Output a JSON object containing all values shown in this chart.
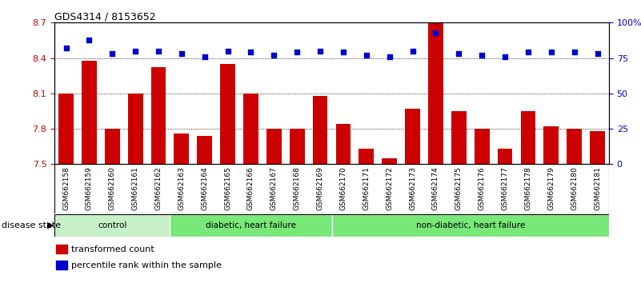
{
  "title": "GDS4314 / 8153652",
  "samples": [
    "GSM662158",
    "GSM662159",
    "GSM662160",
    "GSM662161",
    "GSM662162",
    "GSM662163",
    "GSM662164",
    "GSM662165",
    "GSM662166",
    "GSM662167",
    "GSM662168",
    "GSM662169",
    "GSM662170",
    "GSM662171",
    "GSM662172",
    "GSM662173",
    "GSM662174",
    "GSM662175",
    "GSM662176",
    "GSM662177",
    "GSM662178",
    "GSM662179",
    "GSM662180",
    "GSM662181"
  ],
  "bar_values": [
    8.1,
    8.38,
    7.8,
    8.1,
    8.32,
    7.76,
    7.74,
    8.35,
    8.1,
    7.8,
    7.8,
    8.08,
    7.84,
    7.63,
    7.55,
    7.97,
    8.7,
    7.95,
    7.8,
    7.63,
    7.95,
    7.82,
    7.8,
    7.78
  ],
  "dot_values": [
    82,
    88,
    78,
    80,
    80,
    78,
    76,
    80,
    79,
    77,
    79,
    80,
    79,
    77,
    76,
    80,
    93,
    78,
    77,
    76,
    79,
    79,
    79,
    78
  ],
  "group_ranges": [
    {
      "start": 0,
      "end": 4,
      "color": "#c8f0c8",
      "label": "control"
    },
    {
      "start": 5,
      "end": 11,
      "color": "#78e878",
      "label": "diabetic, heart failure"
    },
    {
      "start": 12,
      "end": 23,
      "color": "#78e878",
      "label": "non-diabetic, heart failure"
    }
  ],
  "ylim_left": [
    7.5,
    8.7
  ],
  "ylim_right": [
    0,
    100
  ],
  "yticks_left": [
    7.5,
    7.8,
    8.1,
    8.4,
    8.7
  ],
  "yticks_right": [
    0,
    25,
    50,
    75,
    100
  ],
  "ytick_labels_right": [
    "0",
    "25",
    "50",
    "75",
    "100%"
  ],
  "bar_color": "#cc0000",
  "dot_color": "#0000cc",
  "bar_bottom": 7.5,
  "grid_lines": [
    7.8,
    8.1,
    8.4
  ],
  "bg_color": "#d8d8d8",
  "plot_bg": "#ffffff"
}
